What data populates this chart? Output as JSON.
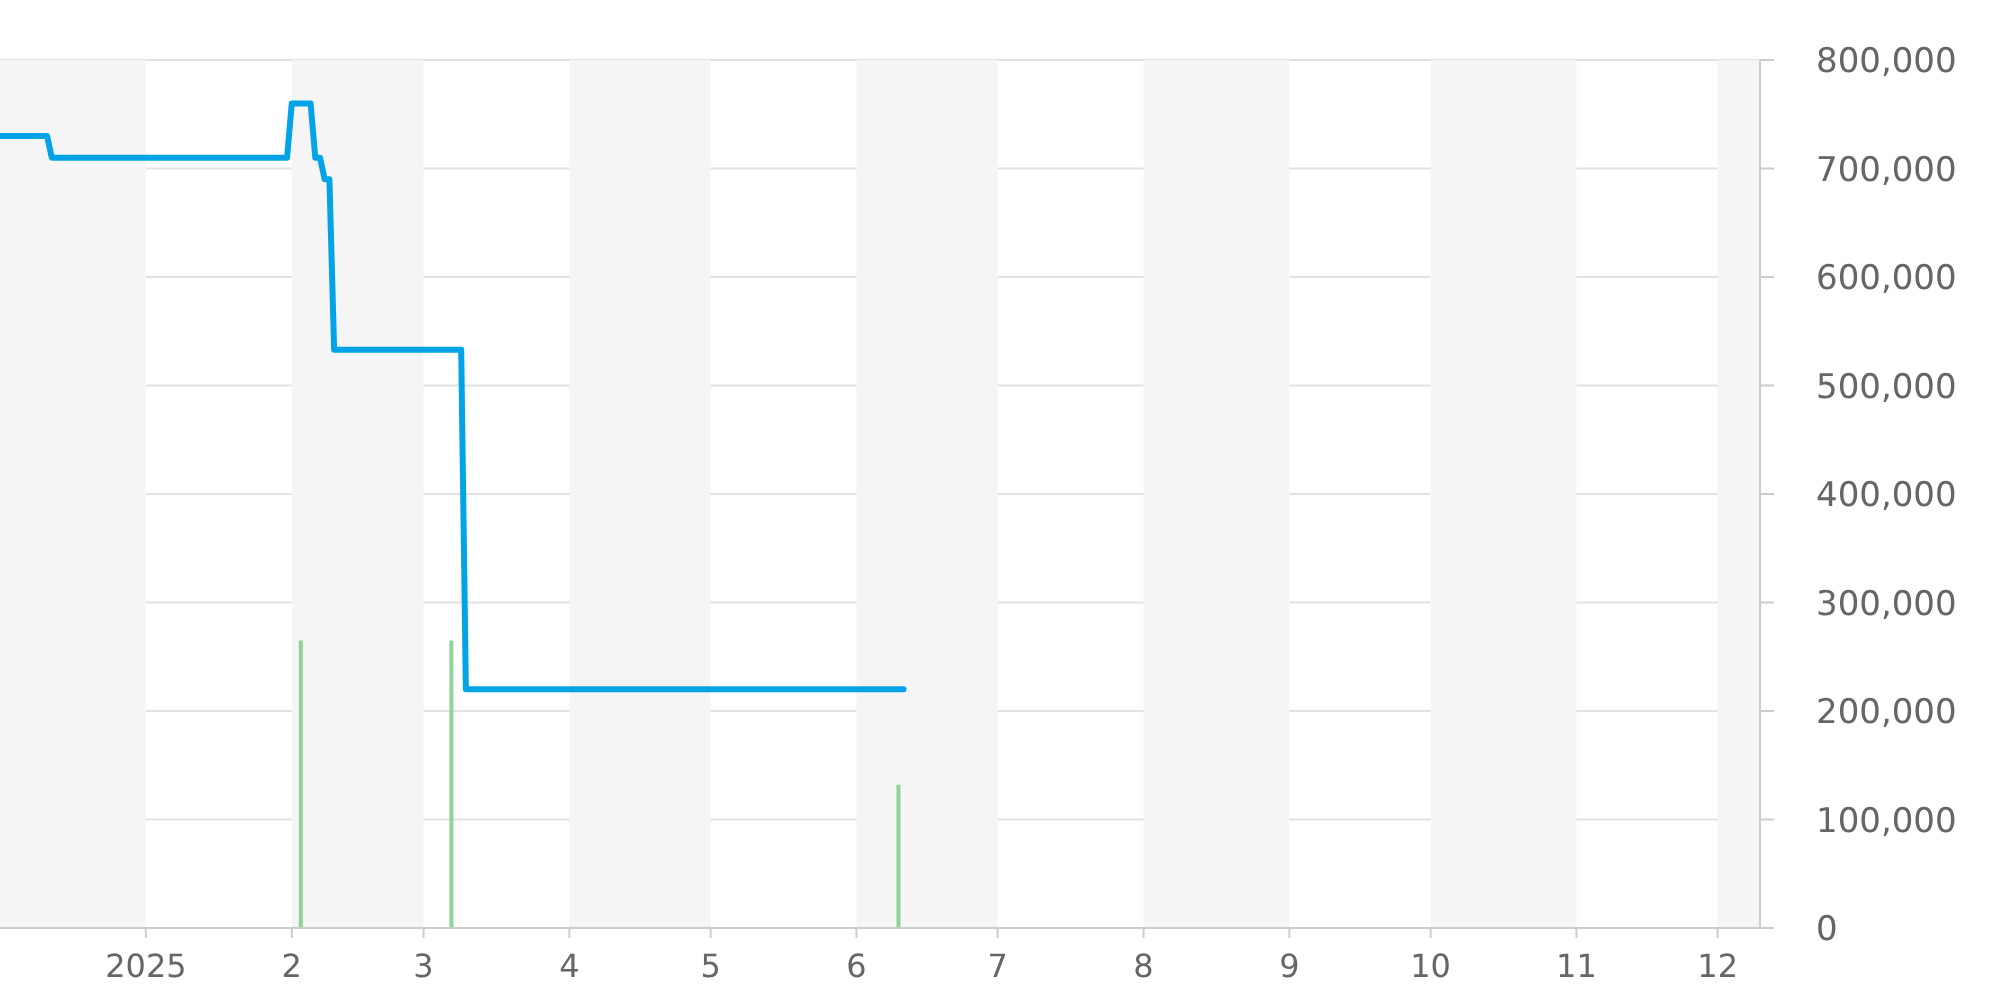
{
  "chart_data": {
    "type": "line",
    "xlim": [
      "2024-12-01",
      "2025-12-10"
    ],
    "xticks": [
      {
        "value": "2025-01-01",
        "label": "2025"
      },
      {
        "value": "2025-02-01",
        "label": "2"
      },
      {
        "value": "2025-03-01",
        "label": "3"
      },
      {
        "value": "2025-04-01",
        "label": "4"
      },
      {
        "value": "2025-05-01",
        "label": "5"
      },
      {
        "value": "2025-06-01",
        "label": "6"
      },
      {
        "value": "2025-07-01",
        "label": "7"
      },
      {
        "value": "2025-08-01",
        "label": "8"
      },
      {
        "value": "2025-09-01",
        "label": "9"
      },
      {
        "value": "2025-10-01",
        "label": "10"
      },
      {
        "value": "2025-11-01",
        "label": "11"
      },
      {
        "value": "2025-12-01",
        "label": "12"
      }
    ],
    "ylim": [
      0,
      800000
    ],
    "yticks": [
      0,
      {
        "value": 100000,
        "label": "100,000"
      },
      {
        "value": 200000,
        "label": "200,000"
      },
      {
        "value": 300000,
        "label": "300,000"
      },
      {
        "value": 400000,
        "label": "400,000"
      },
      {
        "value": 500000,
        "label": "500,000"
      },
      {
        "value": 600000,
        "label": "600,000"
      },
      {
        "value": 700000,
        "label": "700,000"
      },
      {
        "value": 800000,
        "label": "800,000"
      }
    ],
    "grid": "y",
    "series": [
      {
        "color": "#03a3e8",
        "x": [
          "2024-12-01",
          "2024-12-11",
          "2024-12-12",
          "2025-01-31",
          "2025-02-01",
          "2025-02-05",
          "2025-02-06",
          "2025-02-07",
          "2025-02-08",
          "2025-02-09",
          "2025-02-10",
          "2025-03-09",
          "2025-03-10",
          "2025-06-11"
        ],
        "values": [
          730000,
          730000,
          710000,
          710000,
          760000,
          760000,
          710000,
          710000,
          690000,
          690000,
          533000,
          533000,
          220000,
          220000
        ]
      },
      {
        "type": "bar",
        "color": "#8ed49a",
        "x": [
          "2025-02-03",
          "2025-03-07",
          "2025-06-10"
        ],
        "values": [
          265000,
          265000,
          132000
        ]
      }
    ],
    "bands": [
      {
        "axis": "x",
        "from": "2024-12-01",
        "to": "2025-01-01",
        "color": "#f5f5f5"
      },
      {
        "axis": "x",
        "from": "2025-02-01",
        "to": "2025-03-01",
        "color": "#f5f5f5"
      },
      {
        "axis": "x",
        "from": "2025-04-01",
        "to": "2025-05-01",
        "color": "#f5f5f5"
      },
      {
        "axis": "x",
        "from": "2025-06-01",
        "to": "2025-07-01",
        "color": "#f5f5f5"
      },
      {
        "axis": "x",
        "from": "2025-08-01",
        "to": "2025-09-01",
        "color": "#f5f5f5"
      },
      {
        "axis": "x",
        "from": "2025-10-01",
        "to": "2025-11-01",
        "color": "#f5f5f5"
      },
      {
        "axis": "x",
        "from": "2025-12-01",
        "to": "2025-12-10",
        "color": "#f5f5f5"
      }
    ]
  }
}
